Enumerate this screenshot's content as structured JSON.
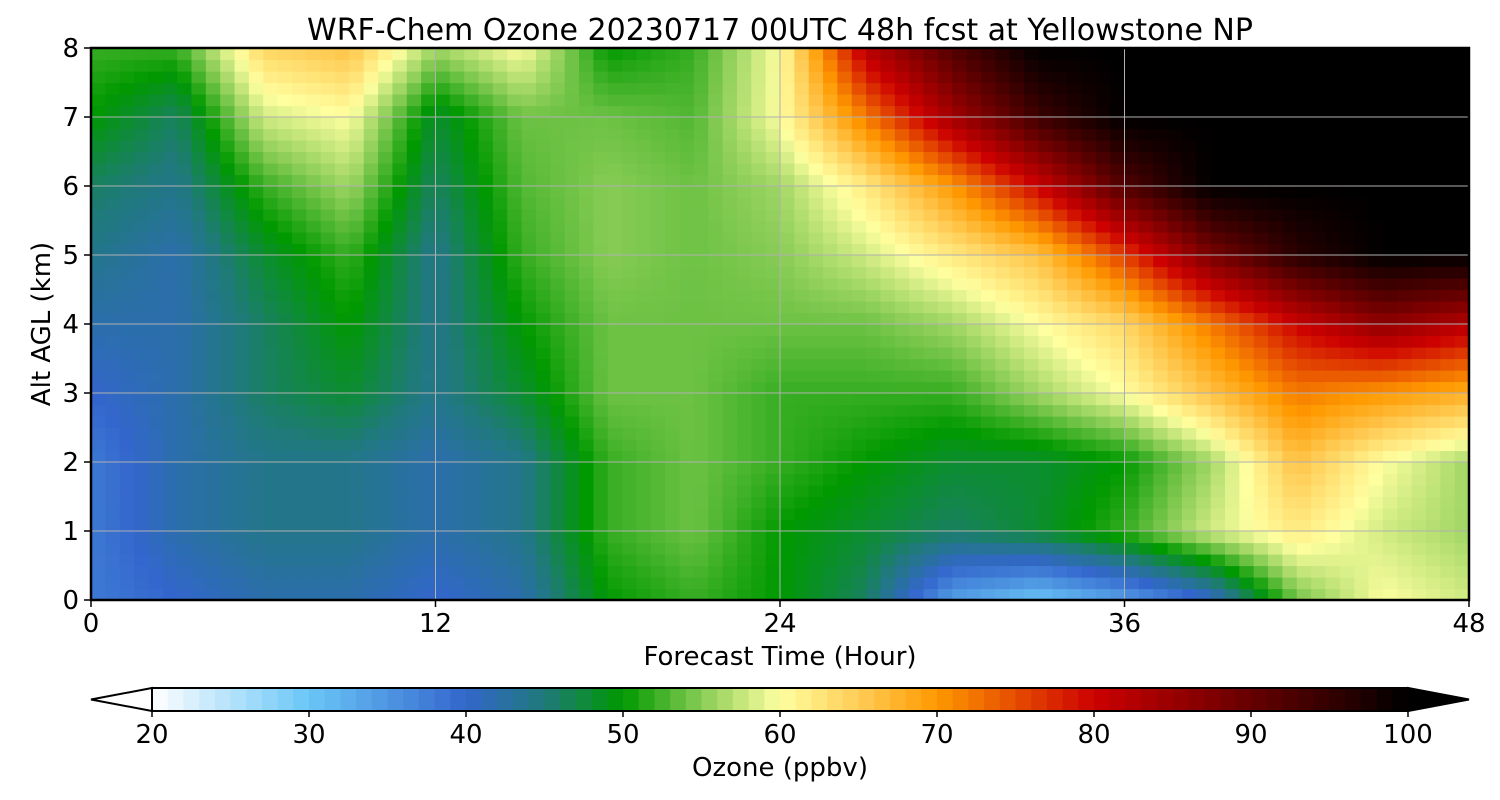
{
  "chart_data": {
    "type": "heatmap",
    "title": "WRF-Chem Ozone  20230717 00UTC 48h fcst at Yellowstone NP",
    "xlabel": "Forecast Time (Hour)",
    "ylabel": "Alt AGL (km)",
    "xlim": [
      0,
      48
    ],
    "ylim": [
      0,
      8
    ],
    "xticks": [
      0,
      12,
      24,
      36,
      48
    ],
    "yticks": [
      0,
      1,
      2,
      3,
      4,
      5,
      6,
      7,
      8
    ],
    "grid": true,
    "x": [
      0,
      3,
      6,
      9,
      12,
      15,
      18,
      21,
      24,
      27,
      30,
      33,
      36,
      39,
      42,
      45,
      48
    ],
    "y": [
      0,
      1,
      2,
      3,
      4,
      5,
      6,
      7,
      8
    ],
    "z": [
      [
        38,
        40,
        42,
        42,
        40,
        42,
        50,
        52,
        50,
        46,
        34,
        30,
        34,
        40,
        54,
        60,
        58
      ],
      [
        38,
        42,
        44,
        44,
        42,
        44,
        52,
        54,
        50,
        48,
        46,
        48,
        52,
        58,
        62,
        58,
        56
      ],
      [
        38,
        42,
        44,
        44,
        42,
        44,
        52,
        54,
        52,
        50,
        48,
        48,
        50,
        56,
        66,
        60,
        56
      ],
      [
        40,
        42,
        46,
        48,
        44,
        48,
        54,
        54,
        52,
        52,
        52,
        56,
        60,
        66,
        72,
        70,
        68
      ],
      [
        42,
        42,
        46,
        50,
        44,
        50,
        54,
        54,
        54,
        54,
        56,
        60,
        64,
        72,
        80,
        86,
        82
      ],
      [
        44,
        42,
        48,
        52,
        44,
        52,
        55,
        54,
        55,
        58,
        62,
        66,
        76,
        88,
        96,
        100,
        100
      ],
      [
        46,
        44,
        52,
        56,
        46,
        53,
        55,
        54,
        56,
        62,
        70,
        80,
        92,
        100,
        100,
        100,
        100
      ],
      [
        50,
        46,
        58,
        60,
        48,
        54,
        54,
        53,
        60,
        72,
        84,
        94,
        100,
        100,
        100,
        100,
        100
      ],
      [
        52,
        52,
        64,
        66,
        56,
        60,
        50,
        52,
        60,
        82,
        92,
        100,
        100,
        100,
        100,
        100,
        100
      ]
    ],
    "colorbar": {
      "label": "Ozone  (ppbv)",
      "min": 20,
      "max": 100,
      "ticks": [
        20,
        30,
        40,
        50,
        60,
        70,
        80,
        90,
        100
      ],
      "extend": "both",
      "stops": [
        {
          "value": 20,
          "color": "#ffffff"
        },
        {
          "value": 30,
          "color": "#6ac6f7"
        },
        {
          "value": 40,
          "color": "#3366cc"
        },
        {
          "value": 45,
          "color": "#1f7a7a"
        },
        {
          "value": 50,
          "color": "#009900"
        },
        {
          "value": 55,
          "color": "#88cc55"
        },
        {
          "value": 60,
          "color": "#ffffa0"
        },
        {
          "value": 65,
          "color": "#ffcc55"
        },
        {
          "value": 70,
          "color": "#ff9900"
        },
        {
          "value": 80,
          "color": "#cc0000"
        },
        {
          "value": 90,
          "color": "#660000"
        },
        {
          "value": 100,
          "color": "#000000"
        }
      ]
    }
  }
}
